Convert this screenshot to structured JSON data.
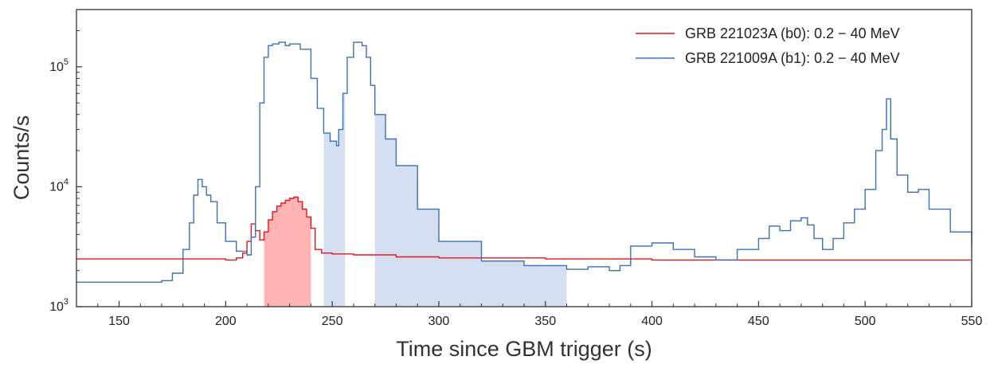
{
  "chart_data": {
    "type": "line",
    "title": "",
    "xlabel": "Time since GBM trigger (s)",
    "ylabel": "Counts/s",
    "xlim": [
      130,
      550
    ],
    "ylim": [
      1000,
      300000
    ],
    "yscale": "log",
    "x_ticks": [
      150,
      200,
      250,
      300,
      350,
      400,
      450,
      500,
      550
    ],
    "y_ticks": [
      {
        "value": 1000,
        "base": "10",
        "exp": "3"
      },
      {
        "value": 10000,
        "base": "10",
        "exp": "4"
      },
      {
        "value": 100000,
        "base": "10",
        "exp": "5"
      }
    ],
    "legend_position": "top-right",
    "grid": false,
    "series": [
      {
        "name": "GRB 221023A (b0): 0.2 − 40 MeV",
        "color": "#e8141b",
        "x": [
          130,
          200,
          205,
          208,
          210,
          212,
          214,
          216,
          218,
          220,
          222,
          224,
          226,
          228,
          230,
          232,
          234,
          236,
          238,
          240,
          242,
          245,
          250,
          260,
          280,
          300,
          350,
          400,
          450,
          500,
          550
        ],
        "y": [
          2500,
          2450,
          2550,
          2800,
          3500,
          4900,
          4300,
          3600,
          4200,
          5300,
          6200,
          6900,
          7300,
          7700,
          8000,
          8200,
          7500,
          6500,
          5600,
          4500,
          3000,
          2800,
          2750,
          2700,
          2600,
          2550,
          2500,
          2450,
          2450,
          2450,
          2450
        ]
      },
      {
        "name": "GRB 221009A (b1): 0.2 − 40 MeV",
        "color": "#3a6fba",
        "x": [
          130,
          150,
          170,
          175,
          180,
          183,
          185,
          187,
          189,
          191,
          193,
          196,
          200,
          205,
          210,
          212,
          214,
          216,
          218,
          220,
          222,
          225,
          228,
          230,
          235,
          240,
          243,
          246,
          249,
          252,
          253,
          255,
          257,
          260,
          264,
          266,
          268,
          270,
          275,
          280,
          290,
          300,
          320,
          340,
          360,
          370,
          380,
          385,
          390,
          400,
          410,
          420,
          430,
          440,
          450,
          455,
          460,
          465,
          470,
          473,
          476,
          480,
          485,
          490,
          495,
          500,
          505,
          508,
          510,
          512,
          515,
          520,
          525,
          530,
          540,
          550
        ],
        "y": [
          1600,
          1600,
          1650,
          1900,
          3000,
          5000,
          8500,
          11500,
          10000,
          8500,
          7500,
          5000,
          3500,
          2900,
          2700,
          3800,
          10000,
          50000,
          120000,
          150000,
          155000,
          160000,
          150000,
          155000,
          140000,
          80000,
          45000,
          28000,
          24000,
          22000,
          30000,
          60000,
          120000,
          160000,
          150000,
          120000,
          70000,
          40000,
          25000,
          15000,
          6500,
          3500,
          2400,
          2200,
          2050,
          2150,
          2000,
          2200,
          3200,
          3400,
          3000,
          2600,
          2450,
          3000,
          3700,
          4700,
          4300,
          5200,
          5500,
          4800,
          3700,
          3000,
          3700,
          5000,
          6500,
          9500,
          20000,
          30000,
          54000,
          25000,
          12500,
          9000,
          9500,
          6500,
          4200,
          3300
        ]
      }
    ],
    "shaded_regions": [
      {
        "x0": 218,
        "x1": 240,
        "color": "#ffb3b3",
        "series": 0
      },
      {
        "x0": 246,
        "x1": 256,
        "color": "#d4e0f2",
        "series": 1
      },
      {
        "x0": 270,
        "x1": 360,
        "color": "#d4e0f2",
        "series": 1
      }
    ]
  }
}
